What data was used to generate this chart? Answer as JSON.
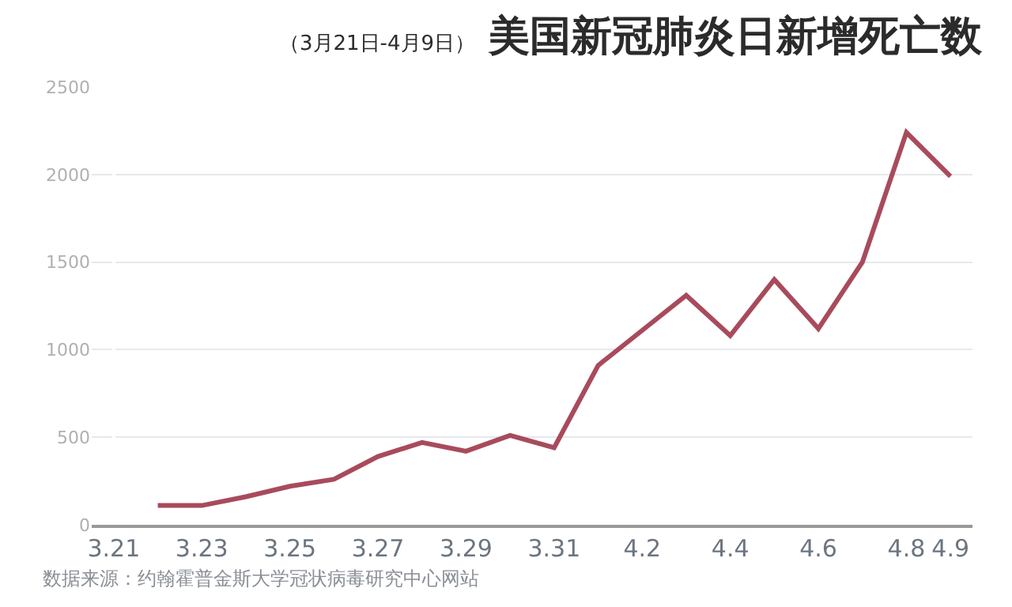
{
  "chart_data": {
    "type": "line",
    "title": "美国新冠肺炎日新增死亡数",
    "subtitle": "（3月21日-4月9日）",
    "categories": [
      "3.21",
      null,
      "3.23",
      null,
      "3.25",
      null,
      "3.27",
      null,
      "3.29",
      null,
      "3.31",
      null,
      "4.2",
      null,
      "4.4",
      null,
      "4.6",
      null,
      "4.8",
      "4.9"
    ],
    "series": [
      {
        "color": "#a84b5c",
        "values": [
          null,
          110,
          110,
          160,
          220,
          260,
          390,
          470,
          420,
          510,
          440,
          910,
          1110,
          1310,
          1080,
          1400,
          1120,
          1500,
          2240,
          1990
        ]
      }
    ],
    "ylim": [
      0,
      2500
    ],
    "yticks": [
      0,
      500,
      1000,
      1500,
      2000,
      2500
    ],
    "grid": "y",
    "marker": "none",
    "line_style": "solid",
    "annotations": [
      "数据来源：约翰霍普金斯大学冠状病毒研究中心网站"
    ]
  }
}
